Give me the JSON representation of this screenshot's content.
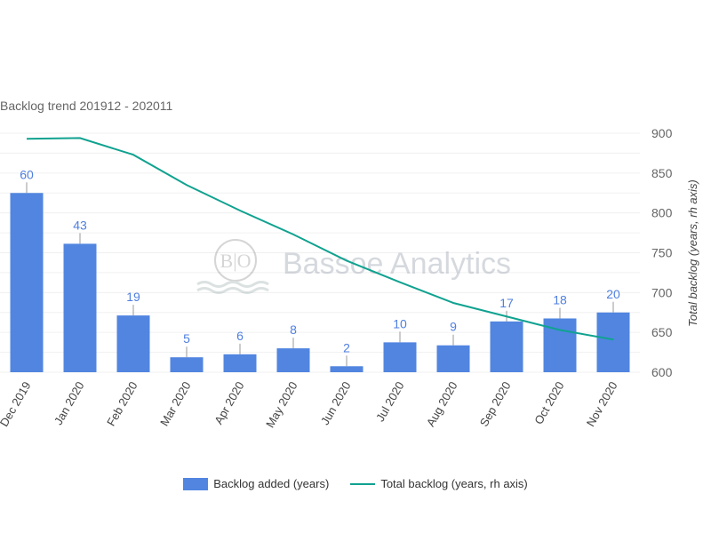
{
  "chart_data": {
    "type": "bar",
    "title": "Backlog trend 201912 - 202011",
    "categories": [
      "Dec 2019",
      "Jan 2020",
      "Feb 2020",
      "Mar 2020",
      "Apr 2020",
      "May 2020",
      "Jun 2020",
      "Jul 2020",
      "Aug 2020",
      "Sep 2020",
      "Oct 2020",
      "Nov 2020"
    ],
    "series": [
      {
        "name": "Backlog added (years)",
        "type": "bar",
        "axis": "left",
        "color": "#5185e0",
        "values": [
          60,
          43,
          19,
          5,
          6,
          8,
          2,
          10,
          9,
          17,
          18,
          20
        ]
      },
      {
        "name": "Total backlog (years, rh axis)",
        "type": "line",
        "axis": "right",
        "color": "#10a290",
        "values": [
          893,
          894,
          873,
          835,
          803,
          773,
          740,
          713,
          687,
          670,
          653,
          641
        ]
      }
    ],
    "left_axis": {
      "visible": false,
      "ylim": [
        0,
        80
      ]
    },
    "right_axis": {
      "label": "Total backlog (years, rh axis)",
      "ylim": [
        600,
        900
      ],
      "ticks": [
        600,
        650,
        700,
        750,
        800,
        850,
        900
      ]
    },
    "grid": true,
    "legend": "bottom",
    "watermark": "Bassoe Analytics"
  }
}
